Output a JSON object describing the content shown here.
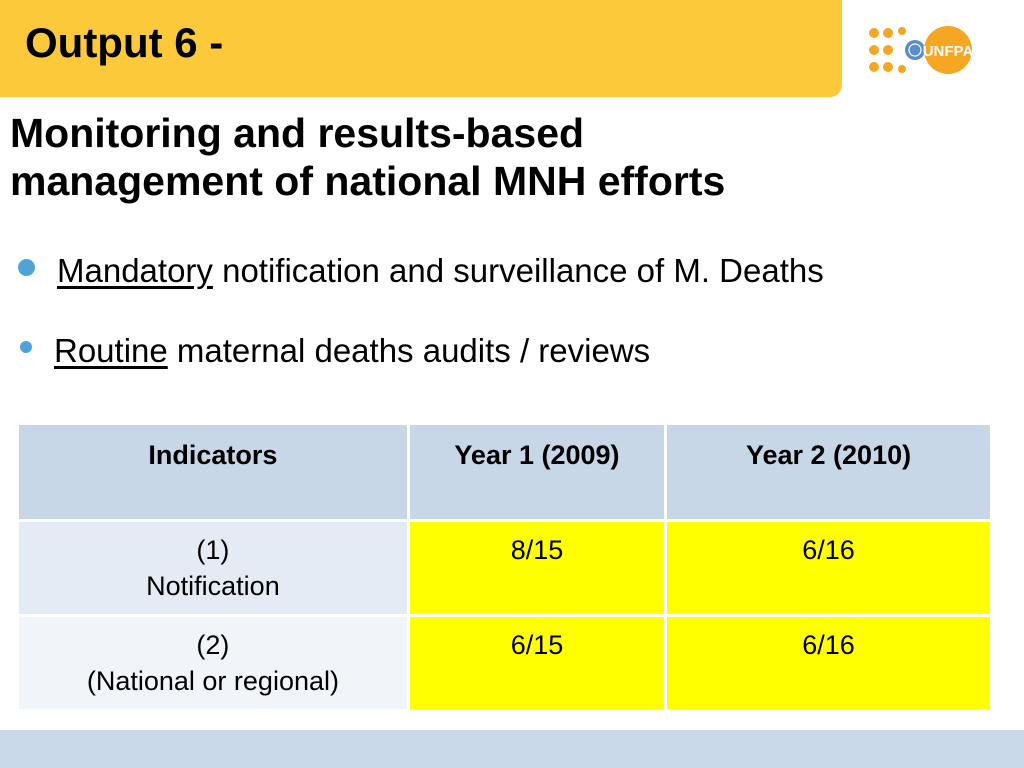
{
  "title": "Output 6 -",
  "logo": {
    "text": "UNFPA",
    "icon": "un-emblem-icon",
    "dot_color": "#f5a623"
  },
  "subtitle_line1": "Monitoring and results-based",
  "subtitle_line2": "management of national MNH efforts",
  "bullets": [
    {
      "underlined": "Mandatory",
      "rest": " notification and surveillance of M. Deaths"
    },
    {
      "underlined": "Routine",
      "rest": " maternal deaths audits / reviews"
    }
  ],
  "table": {
    "headers": [
      "Indicators",
      "Year 1 (2009)",
      "Year 2 (2010)"
    ],
    "rows": [
      {
        "indicator_line1": "(1)",
        "indicator_line2": "Notification",
        "year1": "8/15",
        "year2": "6/16"
      },
      {
        "indicator_line1": "(2)",
        "indicator_line2": "(National or regional)",
        "year1": "6/15",
        "year2": "6/16"
      }
    ]
  },
  "colors": {
    "title_bar": "#fcc93a",
    "highlight": "#ffff00",
    "header_bg": "#c7d7e8",
    "bullet": "#4fa3d9",
    "footer": "#c9d9ea"
  }
}
